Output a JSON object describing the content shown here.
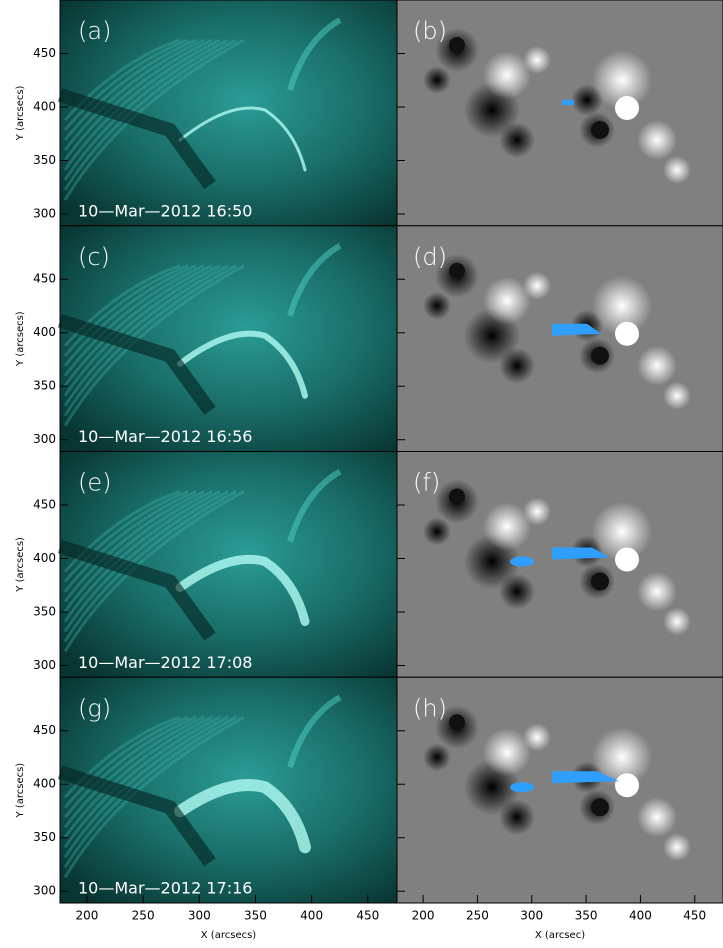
{
  "figure": {
    "y_label": "Y (arcsecs)",
    "x_label_left": "X (arcsecs)",
    "x_label_right": "X (arcsec)",
    "xlim": [
      176,
      476
    ],
    "ylim": [
      289,
      500
    ],
    "xticks": [
      200,
      250,
      300,
      350,
      400,
      450
    ],
    "yticks": [
      300,
      350,
      400,
      450
    ],
    "rows": [
      {
        "left": {
          "label": "(a)",
          "time": "10—Mar—2012 16:50"
        },
        "right": {
          "label": "(b)"
        }
      },
      {
        "left": {
          "label": "(c)",
          "time": "10—Mar—2012 16:56"
        },
        "right": {
          "label": "(d)"
        }
      },
      {
        "left": {
          "label": "(e)",
          "time": "10—Mar—2012 17:08"
        },
        "right": {
          "label": "(f)"
        }
      },
      {
        "left": {
          "label": "(g)",
          "time": "10—Mar—2012 17:16"
        },
        "right": {
          "label": "(h)"
        }
      }
    ]
  }
}
